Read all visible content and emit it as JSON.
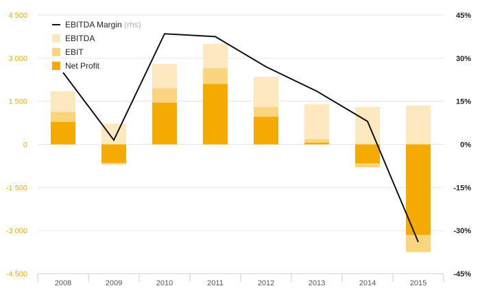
{
  "chart_data": {
    "type": "bar",
    "categories": [
      "2008",
      "2009",
      "2010",
      "2011",
      "2012",
      "2013",
      "2014",
      "2015"
    ],
    "ylim": [
      -4500,
      4500
    ],
    "y_ticks": [
      "4 500",
      "3 000",
      "1 500",
      "0",
      "-1 500",
      "-3 000",
      "-4 500"
    ],
    "y_tick_values": [
      4500,
      3000,
      1500,
      0,
      -1500,
      -3000,
      -4500
    ],
    "ylim_right": [
      -45,
      45
    ],
    "y2_ticks": [
      "45%",
      "30%",
      "15%",
      "0%",
      "-15%",
      "-30%",
      "-45%"
    ],
    "y2_tick_values": [
      45,
      30,
      15,
      0,
      -15,
      -30,
      -45
    ],
    "grid": true,
    "legend_position": "top-left",
    "series": [
      {
        "name": "EBITDA",
        "kind": "bar",
        "values": [
          1850,
          720,
          2800,
          3500,
          2350,
          1400,
          1300,
          1350
        ]
      },
      {
        "name": "EBIT",
        "kind": "bar",
        "values": [
          1130,
          -700,
          1950,
          2650,
          1300,
          180,
          -800,
          -3750
        ]
      },
      {
        "name": "Net Profit",
        "kind": "bar",
        "values": [
          780,
          -640,
          1450,
          2100,
          960,
          60,
          -660,
          -3150
        ]
      },
      {
        "name": "EBITDA Margin",
        "name_note": "(rhs)",
        "kind": "line",
        "axis": "right",
        "values": [
          25,
          1.5,
          38.5,
          37.5,
          27,
          18.5,
          8,
          -34
        ]
      }
    ]
  },
  "colors": {
    "ebitda": "#fde8bf",
    "ebit": "#fbd47e",
    "net_profit": "#f4aa00",
    "line": "#111111",
    "left_axis_text": "#f2a900"
  }
}
